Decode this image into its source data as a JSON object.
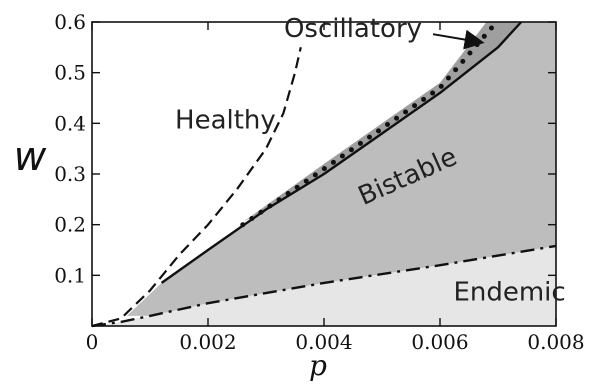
{
  "chart_data": {
    "type": "area",
    "xlabel": "p",
    "ylabel": "w",
    "xlim": [
      0,
      0.008
    ],
    "ylim": [
      0,
      0.6
    ],
    "x_ticks": [
      0,
      0.002,
      0.004,
      0.006,
      0.008
    ],
    "x_tick_labels": [
      "0",
      "0.002",
      "0.004",
      "0.006",
      "0.008"
    ],
    "y_ticks": [
      0.1,
      0.2,
      0.3,
      0.4,
      0.5,
      0.6
    ],
    "y_tick_labels": [
      "0.1",
      "0.2",
      "0.3",
      "0.4",
      "0.5",
      "0.6"
    ],
    "regions": [
      {
        "label": "Healthy",
        "fill": "#ffffff"
      },
      {
        "label": "Oscillatory",
        "fill": "#9f9f9f"
      },
      {
        "label": "Bistable",
        "fill": "#bdbdbd"
      },
      {
        "label": "Endemic",
        "fill": "#e6e6e6"
      }
    ],
    "boundaries": [
      {
        "style": "dashed",
        "points": [
          [
            0,
            0
          ],
          [
            0.0005,
            0.015
          ],
          [
            0.001,
            0.07
          ],
          [
            0.0015,
            0.14
          ],
          [
            0.002,
            0.2
          ],
          [
            0.0025,
            0.27
          ],
          [
            0.003,
            0.35
          ],
          [
            0.0033,
            0.42
          ],
          [
            0.0035,
            0.5
          ],
          [
            0.0036,
            0.55
          ]
        ]
      },
      {
        "style": "solid",
        "points": [
          [
            0.0012,
            0.085
          ],
          [
            0.002,
            0.15
          ],
          [
            0.003,
            0.23
          ],
          [
            0.004,
            0.3
          ],
          [
            0.005,
            0.38
          ],
          [
            0.006,
            0.46
          ],
          [
            0.007,
            0.55
          ],
          [
            0.0074,
            0.6
          ]
        ]
      },
      {
        "style": "dotted",
        "points": [
          [
            0.0026,
            0.2
          ],
          [
            0.004,
            0.31
          ],
          [
            0.005,
            0.39
          ],
          [
            0.006,
            0.47
          ],
          [
            0.0069,
            0.59
          ]
        ]
      },
      {
        "style": "dash-dot",
        "points": [
          [
            0,
            0
          ],
          [
            0.0005,
            0.008
          ],
          [
            0.001,
            0.02
          ],
          [
            0.002,
            0.045
          ],
          [
            0.004,
            0.085
          ],
          [
            0.006,
            0.12
          ],
          [
            0.008,
            0.158
          ]
        ]
      }
    ],
    "oscillatory_upper": [
      [
        0.0026,
        0.205
      ],
      [
        0.004,
        0.32
      ],
      [
        0.005,
        0.4
      ],
      [
        0.006,
        0.48
      ],
      [
        0.0068,
        0.6
      ]
    ],
    "annotations": [
      {
        "text": "Healthy",
        "x": 0.0023,
        "y": 0.39
      },
      {
        "text": "Oscillatory",
        "x": 0.0045,
        "y": 0.57,
        "arrow_to": [
          0.0067,
          0.56
        ]
      },
      {
        "text": "Bistable",
        "x": 0.0055,
        "y": 0.28,
        "rotate": -24
      },
      {
        "text": "Endemic",
        "x": 0.0072,
        "y": 0.05
      }
    ]
  }
}
